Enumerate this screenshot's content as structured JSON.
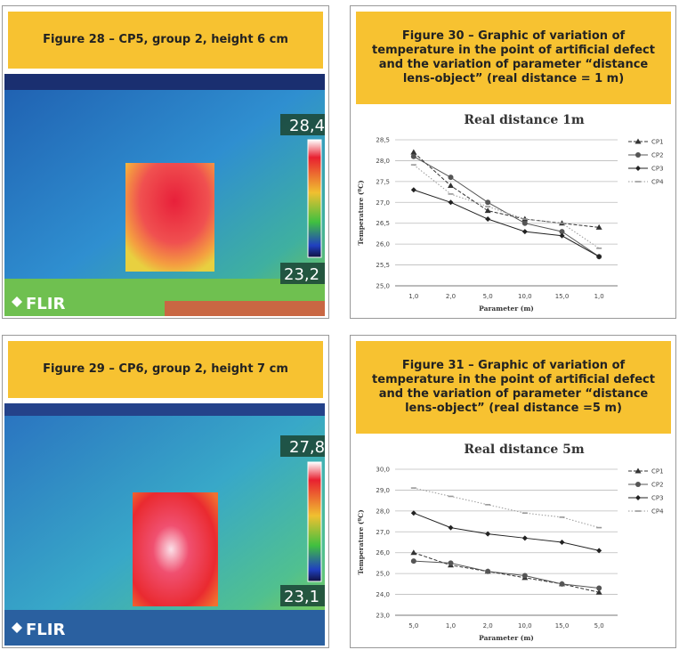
{
  "images": [
    {
      "caption": "Figure 28 – CP5, group 2, height 6 cm",
      "max_label": "28,4",
      "min_label": "23,2",
      "brand": "FLIR"
    },
    {
      "caption": "Figure 29 – CP6, group 2, height 7 cm",
      "max_label": "27,8",
      "min_label": "23,1",
      "brand": "FLIR"
    }
  ],
  "chart_data": [
    {
      "type": "line",
      "caption": "Figure 30 – Graphic of variation of temperature in the point of artificial defect and the variation of parameter “distance lens-object” (real distance = 1 m)",
      "title": "Real distance 1m",
      "x_label": "Parameter (m)",
      "y_label": "Temperature (ºC)",
      "categories": [
        "1,0",
        "2,0",
        "5,0",
        "10,0",
        "15,0",
        "1,0"
      ],
      "ylim": [
        25,
        28.5
      ],
      "yticks": [
        {
          "value": 25,
          "label": "25,0"
        },
        {
          "value": 25.5,
          "label": "25,5"
        },
        {
          "value": 26,
          "label": "26,0"
        },
        {
          "value": 26.5,
          "label": "26,5"
        },
        {
          "value": 27,
          "label": "27,0"
        },
        {
          "value": 27.5,
          "label": "27,5"
        },
        {
          "value": 28,
          "label": "28,0"
        },
        {
          "value": 28.5,
          "label": "28,5"
        }
      ],
      "grid": true,
      "series": [
        {
          "name": "CP1",
          "color": "#333333",
          "marker": "triangle",
          "line_style": "dashed",
          "values": [
            28.2,
            27.4,
            26.8,
            26.6,
            26.5,
            26.4
          ]
        },
        {
          "name": "CP2",
          "color": "#555555",
          "marker": "circle",
          "line_style": "solid",
          "values": [
            28.1,
            27.6,
            27.0,
            26.5,
            26.3,
            25.7
          ]
        },
        {
          "name": "CP3",
          "color": "#222222",
          "marker": "diamond",
          "line_style": "solid",
          "values": [
            27.3,
            27.0,
            26.6,
            26.3,
            26.2,
            25.7
          ]
        },
        {
          "name": "CP4",
          "color": "#999999",
          "marker": "dash",
          "line_style": "dotted",
          "values": [
            27.9,
            27.2,
            26.9,
            26.6,
            26.5,
            25.9
          ]
        }
      ]
    },
    {
      "type": "line",
      "caption": "Figure 31 – Graphic of variation of temperature in the point of artificial defect and the variation of parameter “distance lens-object” (real distance =5 m)",
      "title": "Real distance 5m",
      "x_label": "Parameter (m)",
      "y_label": "Temperature (ºC)",
      "categories": [
        "5,0",
        "1,0",
        "2,0",
        "10,0",
        "15,0",
        "5,0"
      ],
      "ylim": [
        23,
        30
      ],
      "yticks": [
        {
          "value": 23,
          "label": "23,0"
        },
        {
          "value": 24,
          "label": "24,0"
        },
        {
          "value": 25,
          "label": "25,0"
        },
        {
          "value": 26,
          "label": "26,0"
        },
        {
          "value": 27,
          "label": "27,0"
        },
        {
          "value": 28,
          "label": "28,0"
        },
        {
          "value": 29,
          "label": "29,0"
        },
        {
          "value": 30,
          "label": "30,0"
        }
      ],
      "grid": true,
      "series": [
        {
          "name": "CP1",
          "color": "#333333",
          "marker": "triangle",
          "line_style": "dashed",
          "values": [
            26.0,
            25.4,
            25.1,
            24.8,
            24.5,
            24.1
          ]
        },
        {
          "name": "CP2",
          "color": "#555555",
          "marker": "circle",
          "line_style": "solid",
          "values": [
            25.6,
            25.5,
            25.1,
            24.9,
            24.5,
            24.3
          ]
        },
        {
          "name": "CP3",
          "color": "#222222",
          "marker": "diamond",
          "line_style": "solid",
          "values": [
            27.9,
            27.2,
            26.9,
            26.7,
            26.5,
            26.1
          ]
        },
        {
          "name": "CP4",
          "color": "#999999",
          "marker": "dash",
          "line_style": "dotted",
          "values": [
            29.1,
            28.7,
            28.3,
            27.9,
            27.7,
            27.2
          ]
        }
      ]
    }
  ]
}
